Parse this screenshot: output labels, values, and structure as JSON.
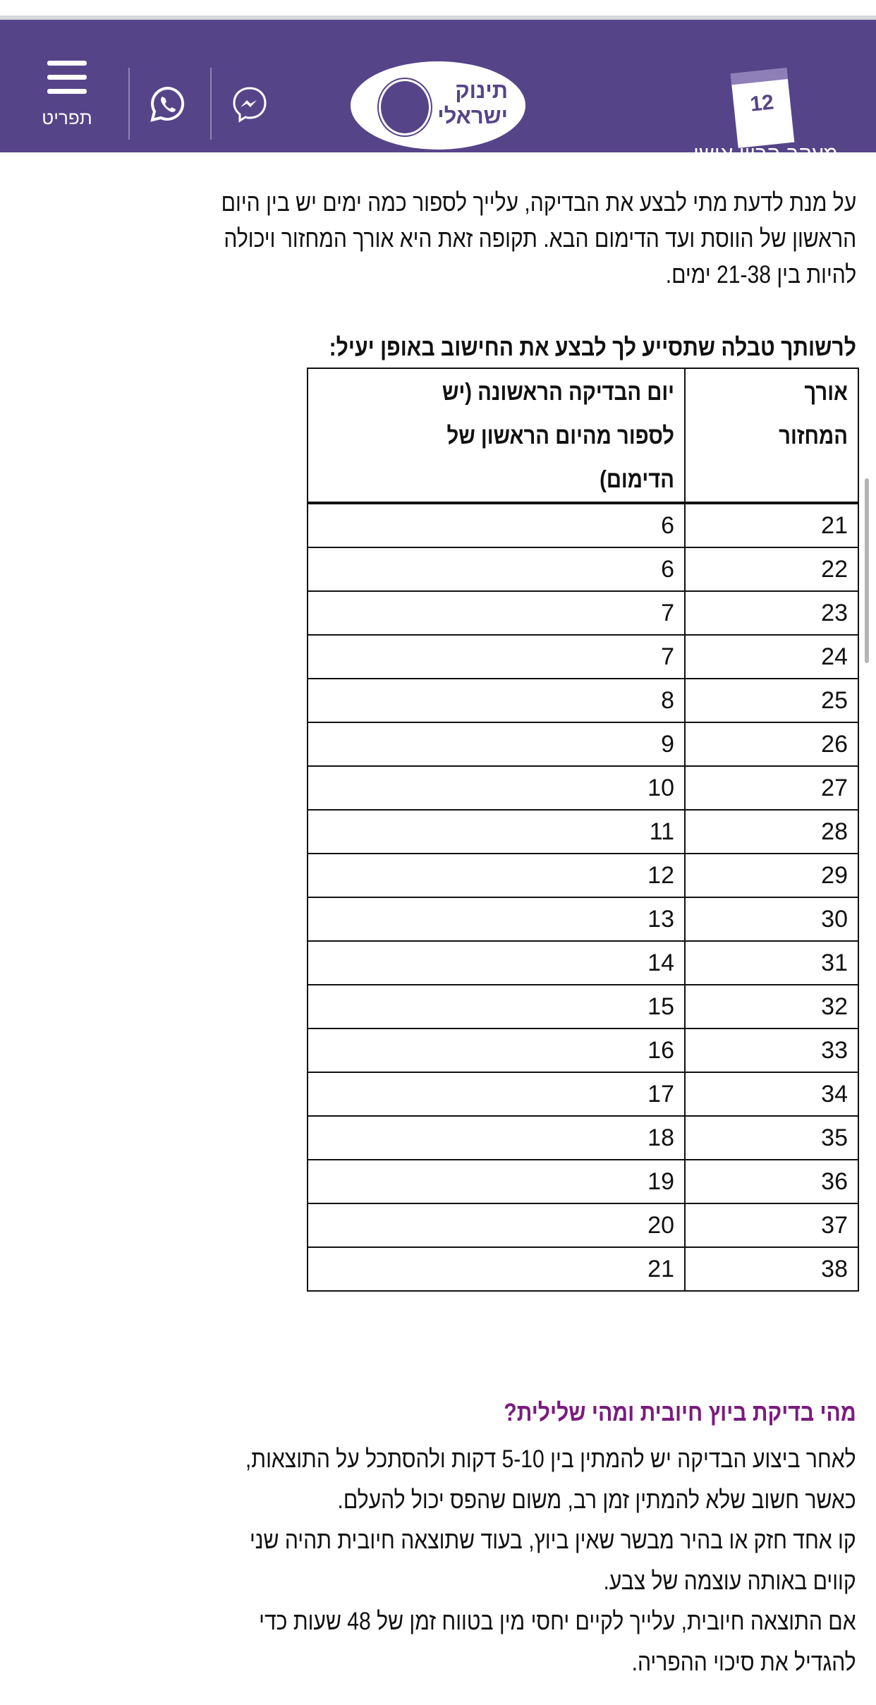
{
  "header": {
    "menu_label": "תפריט",
    "logo_text": [
      "תינוק",
      "ישראלי"
    ],
    "tracker_label": "מעקב הריון אישי",
    "calendar_day": "12",
    "icons": [
      "menu-icon",
      "whatsapp-icon",
      "messenger-icon",
      "calendar-icon"
    ],
    "brand_color": "#564489"
  },
  "intro": {
    "lines": [
      "על מנת לדעת מתי לבצע את הבדיקה, עלייך לספור כמה ימים יש בין היום",
      "הראשון של הווסת ועד הדימום הבא. תקופה זאת היא אורך המחזור ויכולה",
      "להיות בין 21-38 ימים."
    ]
  },
  "table_intro": "לרשותך טבלה שתסייע לך לבצע את החישוב באופן יעיל:",
  "table": {
    "headers": [
      [
        "אורך",
        "המחזור"
      ],
      [
        "יום הבדיקה הראשונה (יש",
        "לספור מהיום הראשון של",
        "הדימום)"
      ]
    ],
    "rows": [
      [
        "21",
        "6"
      ],
      [
        "22",
        "6"
      ],
      [
        "23",
        "7"
      ],
      [
        "24",
        "7"
      ],
      [
        "25",
        "8"
      ],
      [
        "26",
        "9"
      ],
      [
        "27",
        "10"
      ],
      [
        "28",
        "11"
      ],
      [
        "29",
        "12"
      ],
      [
        "30",
        "13"
      ],
      [
        "31",
        "14"
      ],
      [
        "32",
        "15"
      ],
      [
        "33",
        "16"
      ],
      [
        "34",
        "17"
      ],
      [
        "35",
        "18"
      ],
      [
        "36",
        "19"
      ],
      [
        "37",
        "20"
      ],
      [
        "38",
        "21"
      ]
    ]
  },
  "section2": {
    "heading": "מהי בדיקת ביוץ חיובית ומהי שלילית?",
    "heading_color": "#7a1b7e",
    "lines": [
      "לאחר ביצוע הבדיקה יש להמתין בין 5-10 דקות ולהסתכל על התוצאות,",
      "כאשר חשוב שלא להמתין זמן רב, משום שהפס יכול להעלם.",
      "קו אחד חזק או בהיר מבשר שאין ביוץ, בעוד שתוצאה חיובית תהיה שני",
      "קווים באותה עוצמה של צבע.",
      "אם התוצאה חיובית, עלייך לקיים יחסי מין בטווח זמן של 48 שעות כדי",
      "להגדיל את סיכוי ההפריה."
    ]
  }
}
